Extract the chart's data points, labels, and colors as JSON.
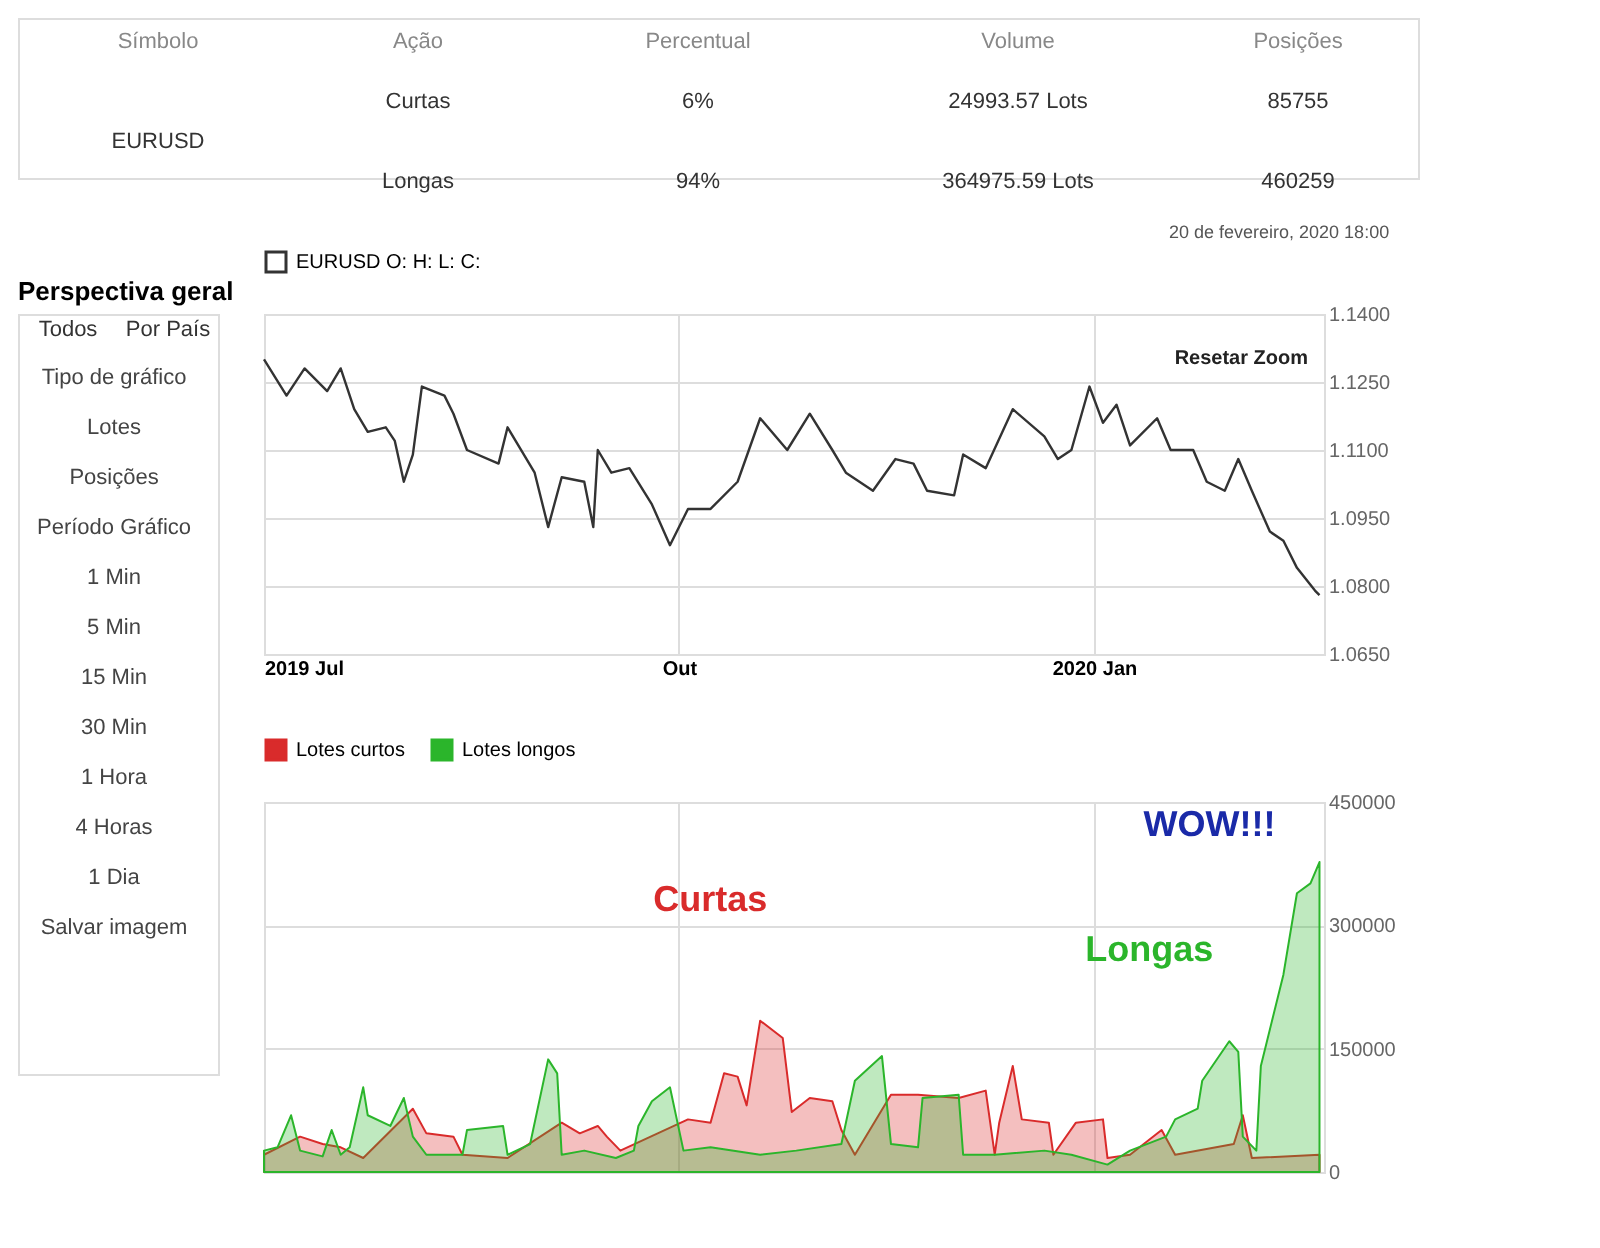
{
  "chart_data": [
    {
      "type": "other",
      "annotations": [
        "Símbolo",
        "Ação",
        "Percentual",
        "Volume",
        "Posições",
        "EURUSD",
        "Curtas",
        "6%",
        "24993.57 Lots",
        "85755",
        "Longas",
        "94%",
        "364975.59 Lots",
        "460259"
      ]
    },
    {
      "type": "other",
      "title": "Perspectiva geral",
      "annotations": [
        "Todos",
        "Por País",
        "Tipo de gráfico",
        "Lotes",
        "Posições",
        "Período Gráfico",
        "1 Min",
        "5 Min",
        "15 Min",
        "30 Min",
        "1 Hora",
        "4 Horas",
        "1 Dia",
        "Salvar imagem"
      ]
    },
    {
      "type": "line",
      "title": "20 de fevereiro, 2020 18:00",
      "legend": "top left",
      "grid": true,
      "xlim": [
        "2019-07-01",
        "2020-02-21"
      ],
      "xticks": [
        {
          "value": "2019-07-01",
          "label": "2019 Jul"
        },
        {
          "value": "2019-10-01",
          "label": "Out"
        },
        {
          "value": "2020-01-01",
          "label": "2020 Jan"
        }
      ],
      "ylim": [
        1.065,
        1.14
      ],
      "yticks": [
        {
          "value": 1.065,
          "label": "1.0650"
        },
        {
          "value": 1.08,
          "label": "1.0800"
        },
        {
          "value": 1.095,
          "label": "1.0950"
        },
        {
          "value": 1.11,
          "label": "1.1100"
        },
        {
          "value": 1.125,
          "label": "1.1250"
        },
        {
          "value": 1.14,
          "label": "1.1400"
        }
      ],
      "annotations": [
        "Resetar Zoom"
      ],
      "series": [
        {
          "name": "EURUSD O: H: L: C:",
          "color": "#333333",
          "x": [
            "2019-07-01",
            "2019-07-06",
            "2019-07-10",
            "2019-07-15",
            "2019-07-18",
            "2019-07-21",
            "2019-07-24",
            "2019-07-28",
            "2019-07-30",
            "2019-08-01",
            "2019-08-03",
            "2019-08-05",
            "2019-08-10",
            "2019-08-12",
            "2019-08-15",
            "2019-08-22",
            "2019-08-24",
            "2019-08-30",
            "2019-09-02",
            "2019-09-05",
            "2019-09-10",
            "2019-09-12",
            "2019-09-13",
            "2019-09-16",
            "2019-09-20",
            "2019-09-25",
            "2019-09-29",
            "2019-10-03",
            "2019-10-08",
            "2019-10-14",
            "2019-10-19",
            "2019-10-25",
            "2019-10-30",
            "2019-11-04",
            "2019-11-07",
            "2019-11-13",
            "2019-11-18",
            "2019-11-22",
            "2019-11-25",
            "2019-12-01",
            "2019-12-03",
            "2019-12-08",
            "2019-12-14",
            "2019-12-21",
            "2019-12-24",
            "2019-12-27",
            "2019-12-31",
            "2020-01-03",
            "2020-01-06",
            "2020-01-09",
            "2020-01-15",
            "2020-01-18",
            "2020-01-23",
            "2020-01-26",
            "2020-01-30",
            "2020-02-02",
            "2020-02-05",
            "2020-02-09",
            "2020-02-12",
            "2020-02-15",
            "2020-02-19",
            "2020-02-20"
          ],
          "values": [
            1.13,
            1.122,
            1.128,
            1.123,
            1.128,
            1.119,
            1.114,
            1.115,
            1.112,
            1.103,
            1.109,
            1.124,
            1.122,
            1.118,
            1.11,
            1.107,
            1.115,
            1.105,
            1.093,
            1.104,
            1.103,
            1.093,
            1.11,
            1.105,
            1.106,
            1.098,
            1.089,
            1.097,
            1.097,
            1.103,
            1.117,
            1.11,
            1.118,
            1.11,
            1.105,
            1.101,
            1.108,
            1.107,
            1.101,
            1.1,
            1.109,
            1.106,
            1.119,
            1.113,
            1.108,
            1.11,
            1.124,
            1.116,
            1.12,
            1.111,
            1.117,
            1.11,
            1.11,
            1.103,
            1.101,
            1.108,
            1.101,
            1.092,
            1.09,
            1.084,
            1.079,
            1.078
          ]
        }
      ]
    },
    {
      "type": "area",
      "legend": "top left",
      "grid": true,
      "tick_labels": "y",
      "xlim": [
        "2019-07-01",
        "2020-02-21"
      ],
      "xticks": [
        {
          "value": "2019-07-01",
          "label": null
        },
        {
          "value": "2019-10-01",
          "label": null
        },
        {
          "value": "2020-01-01",
          "label": null
        }
      ],
      "ylim": [
        0,
        450000
      ],
      "yticks": [
        0,
        150000,
        300000,
        450000
      ],
      "annotations": [
        {
          "text": "Curtas",
          "x": "2019-10-19",
          "y": 184000
        },
        {
          "text": "Longas",
          "x": "2020-01-31",
          "y": 159000
        },
        {
          "text": "WOW!!!",
          "x": "2020-02-20",
          "y": 377000
        }
      ],
      "series": [
        {
          "name": "Lotes curtos",
          "color": "#d92b2b",
          "x": [
            "2019-07-01",
            "2019-07-09",
            "2019-07-14",
            "2019-07-18",
            "2019-07-23",
            "2019-08-03",
            "2019-08-06",
            "2019-08-12",
            "2019-08-14",
            "2019-08-24",
            "2019-09-05",
            "2019-09-09",
            "2019-09-13",
            "2019-09-15",
            "2019-09-18",
            "2019-10-03",
            "2019-10-08",
            "2019-10-11",
            "2019-10-14",
            "2019-10-16",
            "2019-10-19",
            "2019-10-24",
            "2019-10-26",
            "2019-10-30",
            "2019-11-04",
            "2019-11-06",
            "2019-11-09",
            "2019-11-17",
            "2019-11-23",
            "2019-12-02",
            "2019-12-08",
            "2019-12-10",
            "2019-12-11",
            "2019-12-14",
            "2019-12-16",
            "2019-12-22",
            "2019-12-23",
            "2019-12-28",
            "2020-01-03",
            "2020-01-04",
            "2020-01-09",
            "2020-01-16",
            "2020-01-19",
            "2020-02-01",
            "2020-02-03",
            "2020-02-05",
            "2020-02-20"
          ],
          "values": [
            21000,
            43000,
            34000,
            30000,
            17000,
            77000,
            47000,
            43000,
            21000,
            17000,
            60000,
            47000,
            56000,
            43000,
            26000,
            64000,
            60000,
            120000,
            116000,
            81000,
            184000,
            163000,
            73000,
            90000,
            86000,
            51000,
            21000,
            94000,
            94000,
            90000,
            99000,
            21000,
            60000,
            129000,
            64000,
            60000,
            21000,
            60000,
            64000,
            17000,
            21000,
            51000,
            21000,
            34000,
            69000,
            17000,
            21000
          ]
        },
        {
          "name": "Lotes longos",
          "color": "#2bb52b",
          "x": [
            "2019-07-01",
            "2019-07-04",
            "2019-07-07",
            "2019-07-09",
            "2019-07-14",
            "2019-07-16",
            "2019-07-18",
            "2019-07-20",
            "2019-07-23",
            "2019-07-24",
            "2019-07-29",
            "2019-08-01",
            "2019-08-03",
            "2019-08-06",
            "2019-08-14",
            "2019-08-15",
            "2019-08-23",
            "2019-08-24",
            "2019-08-29",
            "2019-09-02",
            "2019-09-04",
            "2019-09-05",
            "2019-09-10",
            "2019-09-17",
            "2019-09-21",
            "2019-09-22",
            "2019-09-25",
            "2019-09-29",
            "2019-10-02",
            "2019-10-08",
            "2019-10-19",
            "2019-10-27",
            "2019-11-06",
            "2019-11-09",
            "2019-11-15",
            "2019-11-17",
            "2019-11-23",
            "2019-11-24",
            "2019-12-02",
            "2019-12-03",
            "2019-12-10",
            "2019-12-21",
            "2019-12-27",
            "2020-01-04",
            "2020-01-09",
            "2020-01-17",
            "2020-01-19",
            "2020-01-24",
            "2020-01-25",
            "2020-01-31",
            "2020-02-02",
            "2020-02-03",
            "2020-02-06",
            "2020-02-07",
            "2020-02-12",
            "2020-02-15",
            "2020-02-18",
            "2020-02-20"
          ],
          "values": [
            26000,
            30000,
            69000,
            26000,
            19000,
            51000,
            21000,
            30000,
            103000,
            69000,
            56000,
            90000,
            43000,
            21000,
            21000,
            51000,
            56000,
            21000,
            34000,
            137000,
            120000,
            21000,
            26000,
            17000,
            26000,
            56000,
            86000,
            103000,
            26000,
            30000,
            21000,
            26000,
            34000,
            111000,
            141000,
            34000,
            30000,
            90000,
            94000,
            21000,
            21000,
            26000,
            21000,
            9000,
            26000,
            43000,
            64000,
            77000,
            111000,
            159000,
            146000,
            43000,
            26000,
            129000,
            240000,
            339000,
            351000,
            377000
          ]
        }
      ]
    }
  ]
}
